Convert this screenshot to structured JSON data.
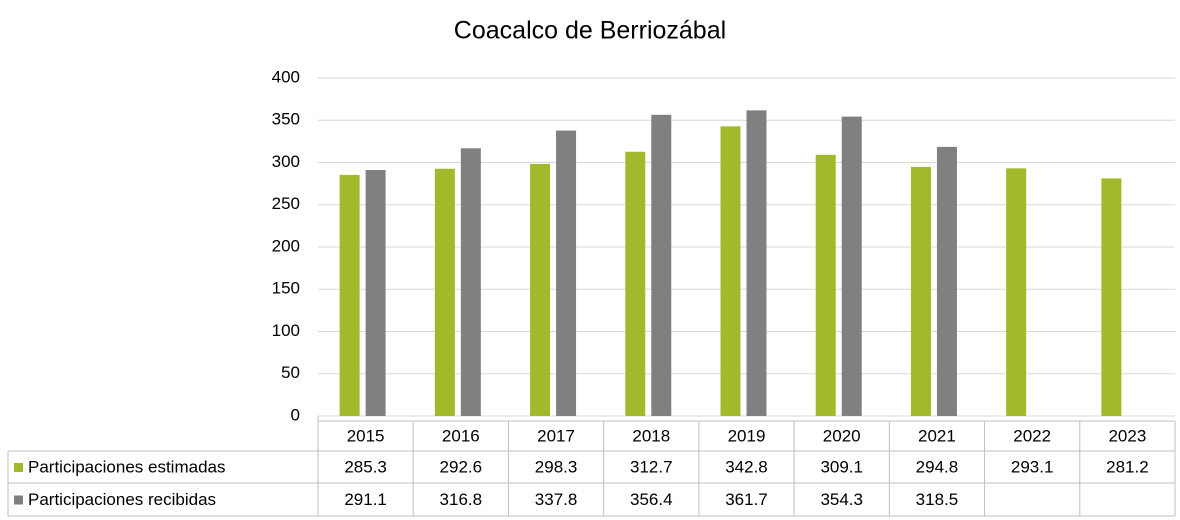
{
  "chart_data": {
    "type": "bar",
    "title": "Coacalco de Berriozábal",
    "categories": [
      "2015",
      "2016",
      "2017",
      "2018",
      "2019",
      "2020",
      "2021",
      "2022",
      "2023"
    ],
    "series": [
      {
        "name": "Participaciones estimadas",
        "color": "#a3b92b",
        "values": [
          285.3,
          292.6,
          298.3,
          312.7,
          342.8,
          309.1,
          294.8,
          293.1,
          281.2
        ]
      },
      {
        "name": "Participaciones recibidas",
        "color": "#808080",
        "values": [
          291.1,
          316.8,
          337.8,
          356.4,
          361.7,
          354.3,
          318.5,
          null,
          null
        ]
      }
    ],
    "ylim": [
      0,
      400
    ],
    "yticks": [
      0,
      50,
      100,
      150,
      200,
      250,
      300,
      350,
      400
    ],
    "grid": true
  }
}
